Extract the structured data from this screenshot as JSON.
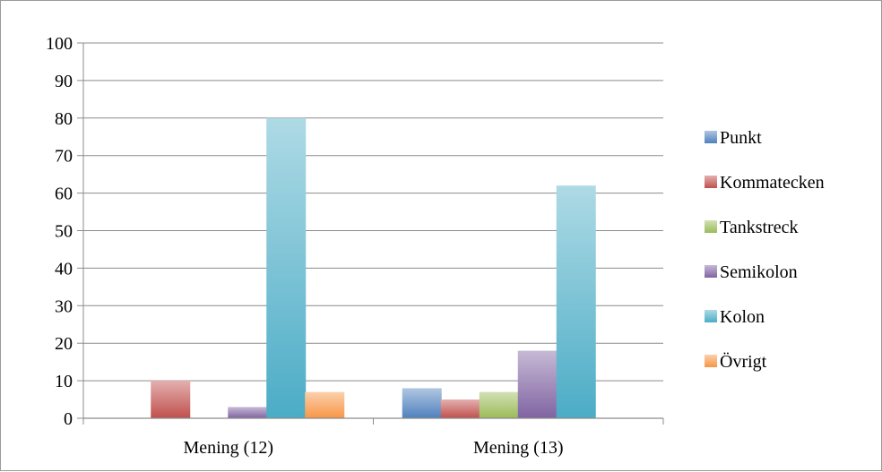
{
  "chart_data": {
    "type": "bar",
    "categories": [
      "Mening (12)",
      "Mening (13)"
    ],
    "series": [
      {
        "name": "Punkt",
        "values": [
          0,
          8
        ],
        "color": "#4f81bd"
      },
      {
        "name": "Kommatecken",
        "values": [
          10,
          5
        ],
        "color": "#c0504d"
      },
      {
        "name": "Tankstreck",
        "values": [
          0,
          7
        ],
        "color": "#9bbb59"
      },
      {
        "name": "Semikolon",
        "values": [
          3,
          18
        ],
        "color": "#8064a2"
      },
      {
        "name": "Kolon",
        "values": [
          80,
          62
        ],
        "color": "#4bacc6"
      },
      {
        "name": "Övrigt",
        "values": [
          7,
          0
        ],
        "color": "#f79646"
      }
    ],
    "yticks": [
      "0",
      "10",
      "20",
      "30",
      "40",
      "50",
      "60",
      "70",
      "80",
      "90",
      "100"
    ],
    "ylim": [
      0,
      100
    ],
    "grid": true,
    "legend": "right"
  }
}
